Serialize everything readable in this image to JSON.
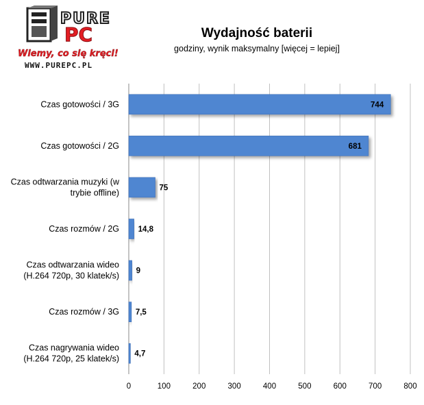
{
  "header": {
    "title": "Wydajność baterii",
    "subtitle": "godziny, wynik maksymalny [więcej = lepiej]"
  },
  "logo": {
    "word_top": "PURE",
    "word_bottom": "PC",
    "tagline": "Wiemy, co się kręci!",
    "url": "WWW.PUREPC.PL",
    "icon": "pc-tower-logo-icon",
    "accent_color": "#e31e24"
  },
  "chart_data": {
    "type": "bar",
    "orientation": "horizontal",
    "title": "Wydajność baterii",
    "subtitle": "godziny, wynik maksymalny [więcej = lepiej]",
    "categories": [
      [
        "Czas gotowości / 3G"
      ],
      [
        "Czas gotowości / 2G"
      ],
      [
        "Czas odtwarzania muzyki (w",
        "trybie offline)"
      ],
      [
        "Czas rozmów / 2G"
      ],
      [
        "Czas odtwarzania wideo",
        "(H.264 720p, 30 klatek/s)"
      ],
      [
        "Czas rozmów / 3G"
      ],
      [
        "Czas nagrywania wideo",
        "(H.264 720p, 25 klatek/s)"
      ]
    ],
    "values": [
      744,
      681,
      75,
      14.8,
      9,
      7.5,
      4.7
    ],
    "value_labels": [
      "744",
      "681",
      "75",
      "14,8",
      "9",
      "7,5",
      "4,7"
    ],
    "xlim": [
      0,
      800
    ],
    "ticks": [
      0,
      100,
      200,
      300,
      400,
      500,
      600,
      700,
      800
    ],
    "tick_labels": [
      "0",
      "100",
      "200",
      "300",
      "400",
      "500",
      "600",
      "700",
      "800"
    ],
    "grid": true,
    "bar_color": "#4f86d1",
    "bar_edge_color": "#3c6db5",
    "grid_color": "#c0c0c0"
  }
}
